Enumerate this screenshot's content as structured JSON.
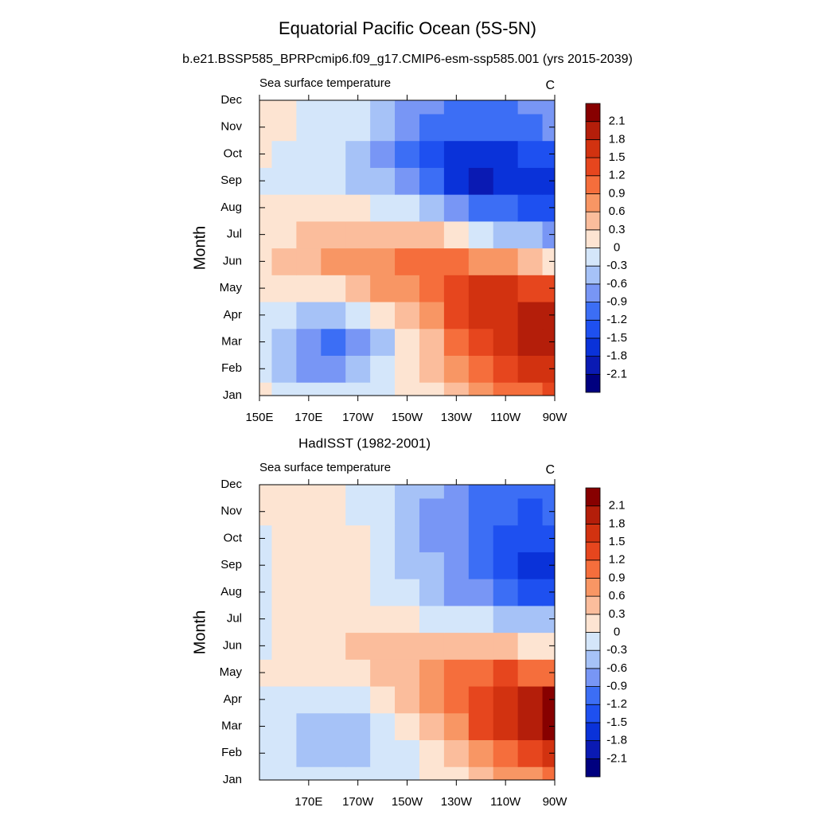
{
  "title": "Equatorial Pacific Ocean (5S-5N)",
  "subtitle": "b.e21.BSSP585_BPRPcmip6.f09_g17.CMIP6-esm-ssp585.001 (yrs 2015-2039)",
  "chart_data": [
    {
      "type": "contour",
      "left_string": "Sea surface temperature",
      "right_string": "C",
      "ylabel": "Month",
      "categories": [
        "Jan",
        "Feb",
        "Mar",
        "Apr",
        "May",
        "Jun",
        "Jul",
        "Aug",
        "Sep",
        "Oct",
        "Nov",
        "Dec"
      ],
      "x": [
        150,
        160,
        170,
        180,
        190,
        200,
        210,
        220,
        230,
        240,
        250,
        260,
        270
      ],
      "xlim": [
        150,
        270
      ],
      "xticks": [
        {
          "value": 150,
          "label": "150E"
        },
        {
          "value": 170,
          "label": "170E"
        },
        {
          "value": 190,
          "label": "170W"
        },
        {
          "value": 210,
          "label": "150W"
        },
        {
          "value": 230,
          "label": "130W"
        },
        {
          "value": 250,
          "label": "110W"
        },
        {
          "value": 270,
          "label": "90W"
        }
      ],
      "levels": [
        -2.1,
        -1.8,
        -1.5,
        -1.2,
        -0.9,
        -0.6,
        -0.3,
        0,
        0.3,
        0.6,
        0.9,
        1.2,
        1.5,
        1.8,
        2.1
      ],
      "colors": [
        "#00007f",
        "#0a1ab3",
        "#0a32d9",
        "#1e50f0",
        "#3c6ef5",
        "#7896f5",
        "#a6c2f7",
        "#d4e6fa",
        "#fde4d2",
        "#fbbd9c",
        "#f89664",
        "#f56e3c",
        "#e6461e",
        "#d23210",
        "#b41e0a",
        "#870000"
      ],
      "values": [
        [
          0.1,
          0,
          -0.1,
          -0.1,
          -0.1,
          0,
          0.1,
          0.3,
          0.5,
          0.8,
          1.0,
          1.2,
          1.4
        ],
        [
          0,
          -0.3,
          -0.6,
          -0.7,
          -0.5,
          -0.2,
          0.2,
          0.5,
          0.8,
          1.1,
          1.4,
          1.6,
          1.8
        ],
        [
          0,
          -0.4,
          -0.8,
          -0.9,
          -0.7,
          -0.3,
          0.2,
          0.6,
          1.0,
          1.3,
          1.6,
          1.9,
          2.0
        ],
        [
          0,
          -0.2,
          -0.4,
          -0.4,
          -0.2,
          0.1,
          0.5,
          0.9,
          1.3,
          1.6,
          1.8,
          2.0,
          2.1
        ],
        [
          0.2,
          0.3,
          0.3,
          0.3,
          0.5,
          0.7,
          0.9,
          1.2,
          1.5,
          1.6,
          1.6,
          1.5,
          1.4
        ],
        [
          0.3,
          0.4,
          0.6,
          0.7,
          0.8,
          0.9,
          1.0,
          1.0,
          1.0,
          0.9,
          0.8,
          0.5,
          0.2
        ],
        [
          0.2,
          0.3,
          0.5,
          0.6,
          0.6,
          0.6,
          0.5,
          0.4,
          0.2,
          0,
          -0.3,
          -0.5,
          -0.6
        ],
        [
          0.1,
          0.1,
          0.2,
          0.2,
          0.1,
          0,
          -0.2,
          -0.5,
          -0.8,
          -1.0,
          -1.1,
          -1.2,
          -1.3
        ],
        [
          0,
          -0.1,
          -0.1,
          -0.2,
          -0.3,
          -0.5,
          -0.8,
          -1.1,
          -1.5,
          -1.8,
          -1.6,
          -1.5,
          -1.5
        ],
        [
          0.1,
          0,
          -0.1,
          -0.2,
          -0.3,
          -0.6,
          -0.9,
          -1.2,
          -1.5,
          -1.5,
          -1.5,
          -1.4,
          -1.3
        ],
        [
          0.2,
          0.1,
          -0.1,
          -0.1,
          -0.2,
          -0.5,
          -0.7,
          -1.0,
          -1.1,
          -1.1,
          -1.0,
          -0.9,
          -0.8
        ],
        [
          0.2,
          0.1,
          -0.1,
          -0.1,
          -0.2,
          -0.4,
          -0.6,
          -0.8,
          -0.9,
          -0.9,
          -0.9,
          -0.8,
          -0.7
        ]
      ]
    },
    {
      "type": "contour",
      "title": "HadISST (1982-2001)",
      "left_string": "Sea surface temperature",
      "right_string": "C",
      "ylabel": "Month",
      "categories": [
        "Jan",
        "Feb",
        "Mar",
        "Apr",
        "May",
        "Jun",
        "Jul",
        "Aug",
        "Sep",
        "Oct",
        "Nov",
        "Dec"
      ],
      "x": [
        150,
        160,
        170,
        180,
        190,
        200,
        210,
        220,
        230,
        240,
        250,
        260,
        270
      ],
      "xlim": [
        150,
        270
      ],
      "xticks": [
        {
          "value": 170,
          "label": "170E"
        },
        {
          "value": 190,
          "label": "170W"
        },
        {
          "value": 210,
          "label": "150W"
        },
        {
          "value": 230,
          "label": "130W"
        },
        {
          "value": 250,
          "label": "110W"
        },
        {
          "value": 270,
          "label": "90W"
        }
      ],
      "levels": [
        -2.1,
        -1.8,
        -1.5,
        -1.2,
        -0.9,
        -0.6,
        -0.3,
        0,
        0.3,
        0.6,
        0.9,
        1.2,
        1.5,
        1.8,
        2.1
      ],
      "colors": [
        "#00007f",
        "#0a1ab3",
        "#0a32d9",
        "#1e50f0",
        "#3c6ef5",
        "#7896f5",
        "#a6c2f7",
        "#d4e6fa",
        "#fde4d2",
        "#fbbd9c",
        "#f89664",
        "#f56e3c",
        "#e6461e",
        "#d23210",
        "#b41e0a",
        "#870000"
      ],
      "values": [
        [
          0,
          0,
          -0.1,
          -0.2,
          -0.1,
          0,
          0,
          0.1,
          0.3,
          0.5,
          0.7,
          0.9,
          1.1
        ],
        [
          0,
          -0.1,
          -0.4,
          -0.4,
          -0.4,
          -0.2,
          0,
          0.3,
          0.6,
          0.9,
          1.2,
          1.5,
          1.7
        ],
        [
          0,
          -0.1,
          -0.4,
          -0.5,
          -0.4,
          -0.2,
          0.1,
          0.5,
          0.9,
          1.3,
          1.7,
          2.0,
          2.2
        ],
        [
          0,
          0,
          -0.1,
          -0.2,
          -0.1,
          0.1,
          0.4,
          0.7,
          1.1,
          1.5,
          1.8,
          2.1,
          2.2
        ],
        [
          0.1,
          0.1,
          0.1,
          0.2,
          0.3,
          0.5,
          0.6,
          0.8,
          1.0,
          1.2,
          1.3,
          1.2,
          1.1
        ],
        [
          0,
          0.1,
          0.2,
          0.3,
          0.4,
          0.5,
          0.5,
          0.5,
          0.5,
          0.5,
          0.4,
          0.3,
          0.1
        ],
        [
          -0.1,
          0.1,
          0.2,
          0.2,
          0.3,
          0.2,
          0.1,
          0,
          -0.1,
          -0.2,
          -0.3,
          -0.4,
          -0.5
        ],
        [
          -0.1,
          0.1,
          0.2,
          0.2,
          0.1,
          0,
          -0.2,
          -0.4,
          -0.6,
          -0.8,
          -1.0,
          -1.2,
          -1.2
        ],
        [
          -0.1,
          0.1,
          0.3,
          0.2,
          0.1,
          -0.1,
          -0.3,
          -0.5,
          -0.8,
          -1.1,
          -1.4,
          -1.5,
          -1.5
        ],
        [
          0,
          0.1,
          0.2,
          0.2,
          0.1,
          -0.1,
          -0.3,
          -0.6,
          -0.8,
          -1.0,
          -1.2,
          -1.3,
          -1.4
        ],
        [
          0.1,
          0.1,
          0.2,
          0.1,
          0,
          -0.2,
          -0.4,
          -0.6,
          -0.7,
          -0.9,
          -1.1,
          -1.2,
          -1.1
        ],
        [
          0.1,
          0.1,
          0.1,
          0.1,
          0,
          -0.2,
          -0.3,
          -0.5,
          -0.6,
          -0.9,
          -1.0,
          -1.0,
          -0.9
        ]
      ]
    }
  ]
}
